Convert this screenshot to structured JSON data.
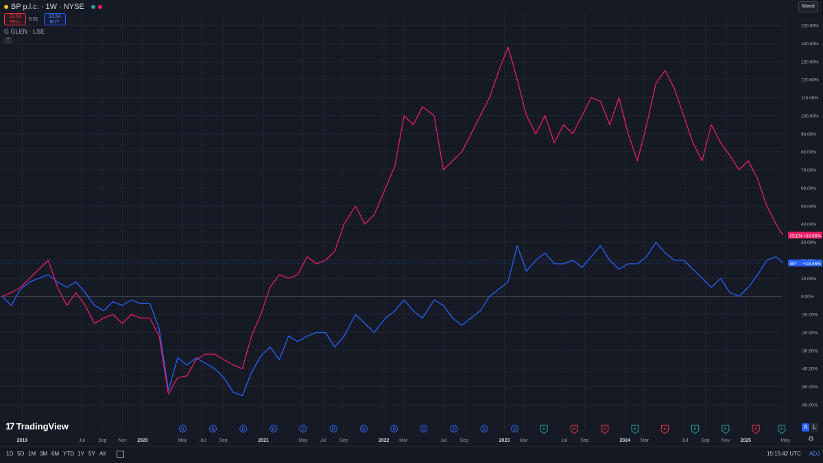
{
  "header": {
    "title": "BP p.l.c. · 1W · NYSE",
    "sell_price": "33.63",
    "sell_label": "SELL",
    "spread": "0.01",
    "buy_price": "33.64",
    "buy_label": "BUY",
    "compare_label": "GLEN · LSE",
    "compare_icon": "G",
    "price_scale_mode": "Mixed"
  },
  "logo": {
    "text": "TradingView",
    "mark": "17"
  },
  "bottom_bar": {
    "ranges": [
      "1D",
      "5D",
      "1M",
      "3M",
      "6M",
      "YTD",
      "1Y",
      "5Y",
      "All"
    ],
    "clock": "15:15:42 UTC",
    "adj": "ADJ",
    "auto_label": "A",
    "log_label": "L"
  },
  "colors": {
    "background": "#161a25",
    "bp": "#2962ff",
    "glen": "#e91e63",
    "grid": "#212530"
  },
  "chart_data": {
    "type": "line",
    "title": "BP p.l.c. · 1W · NYSE",
    "y_unit": "% change",
    "ylim": [
      -60,
      150
    ],
    "y_ticks": [
      "150.00%",
      "140.00%",
      "130.00%",
      "120.00%",
      "110.00%",
      "100.00%",
      "90.00%",
      "80.00%",
      "70.00%",
      "60.00%",
      "50.00%",
      "40.00%",
      "30.00%",
      "20.00%",
      "10.00%",
      "0.00%",
      "-10.00%",
      "-20.00%",
      "-30.00%",
      "-40.00%",
      "-50.00%",
      "-60.00%"
    ],
    "x_ticks": [
      "2019",
      "Jul",
      "Sep",
      "Nov",
      "2020",
      "May",
      "Jul",
      "Sep",
      "2021",
      "May",
      "Jul",
      "Sep",
      "2022",
      "Mar",
      "Jul",
      "Sep",
      "2023",
      "Mar",
      "Jul",
      "Sep",
      "2024",
      "Mar",
      "Jul",
      "Sep",
      "Nov",
      "2025",
      "May"
    ],
    "x_tick_dates": [
      "2019-01-01",
      "2019-07-01",
      "2019-09-01",
      "2019-11-01",
      "2020-01-01",
      "2020-05-01",
      "2020-07-01",
      "2020-09-01",
      "2021-01-01",
      "2021-05-01",
      "2021-07-01",
      "2021-09-01",
      "2022-01-01",
      "2022-03-01",
      "2022-07-01",
      "2022-09-01",
      "2023-01-01",
      "2023-03-01",
      "2023-07-01",
      "2023-09-01",
      "2024-01-01",
      "2024-03-01",
      "2024-07-01",
      "2024-09-01",
      "2024-11-01",
      "2025-01-01",
      "2025-05-01"
    ],
    "grid": true,
    "series": [
      {
        "name": "BP",
        "color": "#2962ff",
        "last_label": "BP",
        "last_value": "+18.46%",
        "points": [
          [
            "2018-11-01",
            0
          ],
          [
            "2018-11-29",
            -5
          ],
          [
            "2018-12-27",
            4
          ],
          [
            "2019-01-24",
            8
          ],
          [
            "2019-02-21",
            10
          ],
          [
            "2019-03-21",
            12
          ],
          [
            "2019-04-18",
            8
          ],
          [
            "2019-05-16",
            5
          ],
          [
            "2019-06-13",
            8
          ],
          [
            "2019-07-11",
            2
          ],
          [
            "2019-08-08",
            -5
          ],
          [
            "2019-09-05",
            -8
          ],
          [
            "2019-10-03",
            -3
          ],
          [
            "2019-10-31",
            -5
          ],
          [
            "2019-11-28",
            -2
          ],
          [
            "2019-12-26",
            -4
          ],
          [
            "2020-01-23",
            -4
          ],
          [
            "2020-02-20",
            -18
          ],
          [
            "2020-03-19",
            -52
          ],
          [
            "2020-04-16",
            -34
          ],
          [
            "2020-05-14",
            -38
          ],
          [
            "2020-06-11",
            -34
          ],
          [
            "2020-07-09",
            -37
          ],
          [
            "2020-08-06",
            -40
          ],
          [
            "2020-09-03",
            -45
          ],
          [
            "2020-10-01",
            -53
          ],
          [
            "2020-10-29",
            -55
          ],
          [
            "2020-11-26",
            -42
          ],
          [
            "2020-12-24",
            -33
          ],
          [
            "2021-01-21",
            -28
          ],
          [
            "2021-02-18",
            -35
          ],
          [
            "2021-03-18",
            -22
          ],
          [
            "2021-04-15",
            -25
          ],
          [
            "2021-05-13",
            -22
          ],
          [
            "2021-06-10",
            -20
          ],
          [
            "2021-07-08",
            -20
          ],
          [
            "2021-08-05",
            -28
          ],
          [
            "2021-09-02",
            -22
          ],
          [
            "2021-10-07",
            -10
          ],
          [
            "2021-11-04",
            -15
          ],
          [
            "2021-12-02",
            -20
          ],
          [
            "2022-01-06",
            -12
          ],
          [
            "2022-02-03",
            -8
          ],
          [
            "2022-03-03",
            -2
          ],
          [
            "2022-03-31",
            -8
          ],
          [
            "2022-04-28",
            -12
          ],
          [
            "2022-06-02",
            -2
          ],
          [
            "2022-06-30",
            -5
          ],
          [
            "2022-07-28",
            -12
          ],
          [
            "2022-08-25",
            -16
          ],
          [
            "2022-09-22",
            -12
          ],
          [
            "2022-10-20",
            -8
          ],
          [
            "2022-11-17",
            0
          ],
          [
            "2022-12-15",
            4
          ],
          [
            "2023-01-12",
            8
          ],
          [
            "2023-02-09",
            28
          ],
          [
            "2023-03-09",
            14
          ],
          [
            "2023-04-06",
            20
          ],
          [
            "2023-05-04",
            24
          ],
          [
            "2023-06-01",
            18
          ],
          [
            "2023-06-29",
            18
          ],
          [
            "2023-07-27",
            20
          ],
          [
            "2023-08-24",
            16
          ],
          [
            "2023-09-21",
            22
          ],
          [
            "2023-10-19",
            28
          ],
          [
            "2023-11-16",
            20
          ],
          [
            "2023-12-14",
            15
          ],
          [
            "2024-01-11",
            18
          ],
          [
            "2024-02-08",
            18
          ],
          [
            "2024-03-07",
            22
          ],
          [
            "2024-04-04",
            30
          ],
          [
            "2024-05-02",
            24
          ],
          [
            "2024-05-30",
            20
          ],
          [
            "2024-06-27",
            20
          ],
          [
            "2024-07-25",
            15
          ],
          [
            "2024-08-22",
            10
          ],
          [
            "2024-09-19",
            5
          ],
          [
            "2024-10-17",
            10
          ],
          [
            "2024-11-14",
            2
          ],
          [
            "2024-12-12",
            0
          ],
          [
            "2025-01-09",
            5
          ],
          [
            "2025-02-06",
            12
          ],
          [
            "2025-03-06",
            20
          ],
          [
            "2025-04-03",
            22
          ],
          [
            "2025-04-24",
            18.46
          ]
        ]
      },
      {
        "name": "GLEN",
        "color": "#e91e63",
        "last_label": "GLEN",
        "last_value": "+33.86%",
        "points": [
          [
            "2018-11-01",
            0
          ],
          [
            "2018-11-29",
            2
          ],
          [
            "2018-12-27",
            5
          ],
          [
            "2019-01-24",
            10
          ],
          [
            "2019-02-21",
            15
          ],
          [
            "2019-03-21",
            20
          ],
          [
            "2019-04-18",
            5
          ],
          [
            "2019-05-16",
            -5
          ],
          [
            "2019-06-13",
            2
          ],
          [
            "2019-07-11",
            -5
          ],
          [
            "2019-08-08",
            -15
          ],
          [
            "2019-09-05",
            -12
          ],
          [
            "2019-10-03",
            -10
          ],
          [
            "2019-10-31",
            -15
          ],
          [
            "2019-11-28",
            -10
          ],
          [
            "2019-12-26",
            -12
          ],
          [
            "2020-01-23",
            -12
          ],
          [
            "2020-02-20",
            -22
          ],
          [
            "2020-03-19",
            -54
          ],
          [
            "2020-04-16",
            -45
          ],
          [
            "2020-05-14",
            -44
          ],
          [
            "2020-06-11",
            -35
          ],
          [
            "2020-07-09",
            -32
          ],
          [
            "2020-08-06",
            -32
          ],
          [
            "2020-09-03",
            -35
          ],
          [
            "2020-10-01",
            -38
          ],
          [
            "2020-10-29",
            -40
          ],
          [
            "2020-11-26",
            -22
          ],
          [
            "2020-12-24",
            -10
          ],
          [
            "2021-01-21",
            5
          ],
          [
            "2021-02-18",
            12
          ],
          [
            "2021-03-18",
            10
          ],
          [
            "2021-04-15",
            12
          ],
          [
            "2021-05-13",
            22
          ],
          [
            "2021-06-10",
            18
          ],
          [
            "2021-07-08",
            20
          ],
          [
            "2021-08-05",
            25
          ],
          [
            "2021-09-02",
            40
          ],
          [
            "2021-10-07",
            50
          ],
          [
            "2021-11-04",
            40
          ],
          [
            "2021-12-02",
            45
          ],
          [
            "2022-01-06",
            60
          ],
          [
            "2022-02-03",
            72
          ],
          [
            "2022-03-03",
            100
          ],
          [
            "2022-03-31",
            95
          ],
          [
            "2022-04-28",
            105
          ],
          [
            "2022-06-02",
            100
          ],
          [
            "2022-06-30",
            70
          ],
          [
            "2022-07-28",
            75
          ],
          [
            "2022-08-25",
            80
          ],
          [
            "2022-09-22",
            90
          ],
          [
            "2022-10-20",
            100
          ],
          [
            "2022-11-17",
            110
          ],
          [
            "2022-12-15",
            125
          ],
          [
            "2023-01-12",
            138
          ],
          [
            "2023-02-09",
            120
          ],
          [
            "2023-03-09",
            100
          ],
          [
            "2023-04-06",
            90
          ],
          [
            "2023-05-04",
            100
          ],
          [
            "2023-06-01",
            85
          ],
          [
            "2023-06-29",
            95
          ],
          [
            "2023-07-27",
            90
          ],
          [
            "2023-08-24",
            100
          ],
          [
            "2023-09-21",
            110
          ],
          [
            "2023-10-19",
            108
          ],
          [
            "2023-11-16",
            95
          ],
          [
            "2023-12-14",
            110
          ],
          [
            "2024-01-11",
            90
          ],
          [
            "2024-02-08",
            75
          ],
          [
            "2024-03-07",
            95
          ],
          [
            "2024-04-04",
            118
          ],
          [
            "2024-05-02",
            125
          ],
          [
            "2024-05-30",
            115
          ],
          [
            "2024-06-27",
            100
          ],
          [
            "2024-07-25",
            85
          ],
          [
            "2024-08-22",
            75
          ],
          [
            "2024-09-19",
            95
          ],
          [
            "2024-10-17",
            85
          ],
          [
            "2024-11-14",
            78
          ],
          [
            "2024-12-12",
            70
          ],
          [
            "2025-01-09",
            75
          ],
          [
            "2025-02-06",
            65
          ],
          [
            "2025-03-06",
            50
          ],
          [
            "2025-04-03",
            40
          ],
          [
            "2025-04-24",
            33.86
          ]
        ]
      }
    ],
    "events": {
      "dividend_label": "D",
      "earnings_label": "E",
      "dividend_dates": [
        "2020-05-01",
        "2020-08-01",
        "2020-11-01",
        "2021-02-01",
        "2021-05-01",
        "2021-08-01",
        "2021-11-01",
        "2022-02-01",
        "2022-05-01",
        "2022-08-01",
        "2022-11-01",
        "2023-02-01"
      ],
      "earnings": [
        {
          "date": "2023-05-01",
          "kind": "green"
        },
        {
          "date": "2023-08-01",
          "kind": "red"
        },
        {
          "date": "2023-11-01",
          "kind": "red"
        },
        {
          "date": "2024-02-01",
          "kind": "green"
        },
        {
          "date": "2024-05-01",
          "kind": "red"
        },
        {
          "date": "2024-08-01",
          "kind": "green"
        },
        {
          "date": "2024-11-01",
          "kind": "green"
        },
        {
          "date": "2025-02-01",
          "kind": "red"
        },
        {
          "date": "2025-04-20",
          "kind": "green"
        }
      ]
    }
  }
}
